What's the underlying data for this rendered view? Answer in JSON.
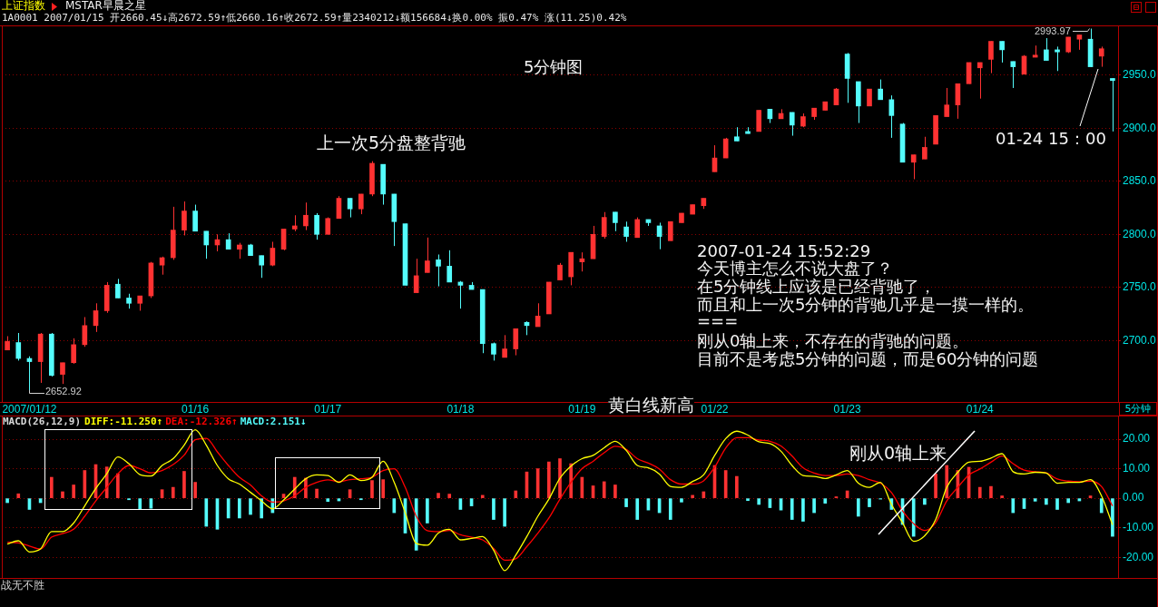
{
  "chart_data": [
    {
      "type": "candlestick",
      "title": "上证指数",
      "subtitle": "MSTAR早晨之星",
      "xlabel": "5分钟",
      "categories": [
        null,
        null,
        "2007/01/12",
        null,
        null,
        null,
        null,
        null,
        null,
        null,
        null,
        null,
        null,
        null,
        null,
        null,
        null,
        "01/16",
        null,
        null,
        null,
        null,
        null,
        null,
        null,
        null,
        null,
        null,
        null,
        "01/17",
        null,
        null,
        null,
        null,
        null,
        null,
        null,
        null,
        null,
        null,
        null,
        "01/18",
        null,
        null,
        null,
        null,
        null,
        null,
        null,
        null,
        null,
        null,
        "01/19",
        null,
        null,
        null,
        null,
        null,
        null,
        null,
        null,
        null,
        null,
        null,
        "01/22",
        null,
        null,
        null,
        null,
        null,
        null,
        null,
        null,
        null,
        null,
        null,
        "01/23",
        null,
        null,
        null,
        null,
        null,
        null,
        null,
        null,
        null,
        null,
        null,
        "01/24",
        null,
        null,
        null,
        null,
        null,
        null,
        null,
        null,
        null,
        null,
        null,
        null
      ],
      "ohlc": [
        [
          2691,
          2704,
          2691,
          2699
        ],
        [
          2698,
          2707,
          2681,
          2683
        ],
        [
          2683,
          2685,
          2652.92,
          2680
        ],
        [
          2680,
          2707,
          2660,
          2706
        ],
        [
          2706,
          2707,
          2666,
          2667
        ],
        [
          2668,
          2679,
          2659,
          2679
        ],
        [
          2679,
          2702,
          2678,
          2696
        ],
        [
          2696,
          2722,
          2694,
          2714
        ],
        [
          2714,
          2735,
          2708,
          2728
        ],
        [
          2728,
          2755,
          2726,
          2752
        ],
        [
          2753,
          2758,
          2740,
          2740
        ],
        [
          2740,
          2744,
          2730,
          2735
        ],
        [
          2735,
          2742,
          2728,
          2742
        ],
        [
          2742,
          2774,
          2740,
          2773
        ],
        [
          2771,
          2779,
          2762,
          2778
        ],
        [
          2778,
          2826,
          2776,
          2804
        ],
        [
          2804,
          2831,
          2799,
          2822
        ],
        [
          2822,
          2828,
          2803,
          2803
        ],
        [
          2803,
          2803,
          2777,
          2790
        ],
        [
          2790,
          2800,
          2784,
          2795
        ],
        [
          2795,
          2801,
          2786,
          2786
        ],
        [
          2786,
          2792,
          2777,
          2790
        ],
        [
          2790,
          2791,
          2780,
          2780
        ],
        [
          2780,
          2780,
          2759,
          2771
        ],
        [
          2771,
          2793,
          2770,
          2787
        ],
        [
          2786,
          2805,
          2785,
          2805
        ],
        [
          2805,
          2818,
          2803,
          2808
        ],
        [
          2808,
          2830,
          2804,
          2818
        ],
        [
          2818,
          2820,
          2795,
          2800
        ],
        [
          2800,
          2816,
          2800,
          2815
        ],
        [
          2815,
          2836,
          2815,
          2834
        ],
        [
          2834,
          2834,
          2816,
          2824
        ],
        [
          2824,
          2838,
          2819,
          2838
        ],
        [
          2838,
          2869,
          2836,
          2867
        ],
        [
          2866,
          2866,
          2828,
          2838
        ],
        [
          2838,
          2838,
          2789,
          2812
        ],
        [
          2810,
          2810,
          2752,
          2752
        ],
        [
          2745,
          2777,
          2745,
          2761
        ],
        [
          2764,
          2797,
          2764,
          2775
        ],
        [
          2776,
          2781,
          2751,
          2770
        ],
        [
          2770,
          2785,
          2755,
          2755
        ],
        [
          2755,
          2756,
          2730,
          2752
        ],
        [
          2752,
          2755,
          2748,
          2748
        ],
        [
          2748,
          2748,
          2688,
          2697
        ],
        [
          2697,
          2698,
          2681,
          2687
        ],
        [
          2684,
          2705,
          2684,
          2692
        ],
        [
          2692,
          2711,
          2686,
          2711
        ],
        [
          2717,
          2718,
          2705,
          2714
        ],
        [
          2713,
          2735,
          2713,
          2723
        ],
        [
          2725,
          2755,
          2725,
          2755
        ],
        [
          2757,
          2773,
          2757,
          2771
        ],
        [
          2760,
          2783,
          2752,
          2783
        ],
        [
          2774,
          2783,
          2765,
          2777
        ],
        [
          2777,
          2808,
          2777,
          2800
        ],
        [
          2798,
          2821,
          2796,
          2816
        ],
        [
          2821,
          2821,
          2803,
          2811
        ],
        [
          2807,
          2812,
          2793,
          2798
        ],
        [
          2797,
          2816,
          2797,
          2814
        ],
        [
          2814,
          2814,
          2808,
          2811
        ],
        [
          2808,
          2811,
          2786,
          2798
        ],
        [
          2794,
          2812,
          2794,
          2812
        ],
        [
          2811,
          2820,
          2811,
          2820
        ],
        [
          2819,
          2828,
          2819,
          2828
        ],
        [
          2827,
          2834,
          2824,
          2834
        ],
        [
          2859,
          2884,
          2859,
          2872
        ],
        [
          2872,
          2891,
          2872,
          2890
        ],
        [
          2892,
          2901,
          2888,
          2888
        ],
        [
          2897,
          2901,
          2895,
          2895
        ],
        [
          2897,
          2917,
          2897,
          2917
        ],
        [
          2918,
          2918,
          2905,
          2909
        ],
        [
          2909,
          2918,
          2909,
          2914
        ],
        [
          2915,
          2915,
          2893,
          2903
        ],
        [
          2902,
          2914,
          2901,
          2911
        ],
        [
          2911,
          2919,
          2908,
          2919
        ],
        [
          2917,
          2925,
          2917,
          2925
        ],
        [
          2922,
          2938,
          2922,
          2937
        ],
        [
          2970,
          2971,
          2924,
          2947
        ],
        [
          2944,
          2944,
          2905,
          2921
        ],
        [
          2921,
          2937,
          2921,
          2937
        ],
        [
          2937,
          2946,
          2927,
          2927
        ],
        [
          2927,
          2931,
          2891,
          2912
        ],
        [
          2904,
          2905,
          2868,
          2868
        ],
        [
          2868,
          2875,
          2852,
          2875
        ],
        [
          2871,
          2892,
          2871,
          2882
        ],
        [
          2885,
          2912,
          2885,
          2912
        ],
        [
          2911,
          2938,
          2911,
          2922
        ],
        [
          2922,
          2942,
          2909,
          2942
        ],
        [
          2942,
          2962,
          2942,
          2962
        ],
        [
          2957,
          2962,
          2928,
          2962
        ],
        [
          2965,
          2982,
          2952,
          2982
        ],
        [
          2982,
          2982,
          2962,
          2974
        ],
        [
          2963,
          2963,
          2938,
          2958
        ],
        [
          2951,
          2969,
          2951,
          2968
        ],
        [
          2967,
          2978,
          2967,
          2969
        ],
        [
          2974,
          2985,
          2964,
          2964
        ],
        [
          2974,
          2977,
          2954,
          2972
        ],
        [
          2972,
          2986,
          2971,
          2986
        ],
        [
          2984,
          2988,
          2974,
          2988
        ],
        [
          2984,
          2993.97,
          2958,
          2958
        ],
        [
          2968,
          2977,
          2958,
          2975
        ],
        [
          2947,
          2947,
          2897,
          2945
        ]
      ],
      "colors": [
        "#ff3232",
        "#54fcfc",
        "#54fcfc",
        "#ff3232",
        "#54fcfc",
        "#ff3232",
        "#ff3232",
        "#ff3232",
        "#ff3232",
        "#ff3232",
        "#54fcfc",
        "#54fcfc",
        "#ff3232",
        "#ff3232",
        "#ff3232",
        "#ff3232",
        "#ff3232",
        "#54fcfc",
        "#54fcfc",
        "#ff3232",
        "#54fcfc",
        "#ff3232",
        "#54fcfc",
        "#54fcfc",
        "#ff3232",
        "#ff3232",
        "#ff3232",
        "#ff3232",
        "#54fcfc",
        "#ff3232",
        "#ff3232",
        "#54fcfc",
        "#ff3232",
        "#ff3232",
        "#54fcfc",
        "#54fcfc",
        "#54fcfc",
        "#ff3232",
        "#ff3232",
        "#54fcfc",
        "#54fcfc",
        "#54fcfc",
        "#54fcfc",
        "#54fcfc",
        "#54fcfc",
        "#ff3232",
        "#ff3232",
        "#54fcfc",
        "#ff3232",
        "#ff3232",
        "#ff3232",
        "#ff3232",
        "#ff3232",
        "#ff3232",
        "#ff3232",
        "#54fcfc",
        "#54fcfc",
        "#ff3232",
        "#54fcfc",
        "#54fcfc",
        "#ff3232",
        "#ff3232",
        "#ff3232",
        "#ff3232",
        "#ff3232",
        "#ff3232",
        "#54fcfc",
        "#54fcfc",
        "#ff3232",
        "#54fcfc",
        "#ff3232",
        "#54fcfc",
        "#ff3232",
        "#ff3232",
        "#ff3232",
        "#ff3232",
        "#54fcfc",
        "#54fcfc",
        "#ff3232",
        "#54fcfc",
        "#54fcfc",
        "#54fcfc",
        "#ff3232",
        "#ff3232",
        "#ff3232",
        "#ff3232",
        "#ff3232",
        "#ff3232",
        "#ff3232",
        "#ff3232",
        "#54fcfc",
        "#54fcfc",
        "#ff3232",
        "#ff3232",
        "#54fcfc",
        "#54fcfc",
        "#ff3232",
        "#ff3232",
        "#54fcfc",
        "#ff3232",
        "#54fcfc"
      ],
      "ylim": [
        2642,
        2997
      ],
      "yticks": [
        {
          "value": 2700,
          "label": "2700.0"
        },
        {
          "value": 2750,
          "label": "2750.0"
        },
        {
          "value": 2800,
          "label": "2800.0"
        },
        {
          "value": 2850,
          "label": "2850.0"
        },
        {
          "value": 2900,
          "label": "2900.0"
        },
        {
          "value": 2950,
          "label": "2950.0"
        }
      ],
      "grid": "y",
      "annotations": [
        "1A0001 2007/01/15 开2660.45↓高2672.59↑低2660.16↑收2672.59↑量2340212↓额156684↓换0.00% 振0.47% 涨(11.25)0.42%",
        "5分钟图",
        "上一次5分盘整背驰",
        "01-24 15：00",
        "2993.97",
        "2652.92",
        "2007-01-24 15:52:29",
        "今天博主怎么不说大盘了？",
        "在5分钟线上应该是已经背驰了，",
        "而且和上一次5分钟的背驰几乎是一摸一样的。",
        "===",
        "刚从0轴上来，不存在的背驰的问题。",
        "目前不是考虑5分钟的问题，而是60分钟的问题"
      ]
    },
    {
      "type": "bar",
      "categories": [
        null,
        null,
        null,
        null,
        null,
        null,
        null,
        null,
        null,
        null,
        null,
        null,
        null,
        null,
        null,
        null,
        null,
        null,
        null,
        null,
        null,
        null,
        null,
        null,
        null,
        null,
        null,
        null,
        null,
        null,
        null,
        null,
        null,
        null,
        null,
        null,
        null,
        null,
        null,
        null,
        null,
        null,
        null,
        null,
        null,
        null,
        null,
        null,
        null,
        null,
        null,
        null,
        null,
        null,
        null,
        null,
        null,
        null,
        null,
        null,
        null,
        null,
        null,
        null,
        null,
        null,
        null,
        null,
        null,
        null,
        null,
        null,
        null,
        null,
        null,
        null,
        null,
        null,
        null,
        null,
        null,
        null,
        null,
        null,
        null,
        null,
        null,
        null,
        null,
        null,
        null,
        null,
        null,
        null,
        null,
        null,
        null,
        null,
        null,
        null,
        null
      ],
      "series": [
        {
          "name": "DIFF:-11.250↑",
          "type": "line",
          "color": "#ffff00",
          "values": [
            -15.5,
            -14.4,
            -18.2,
            -17.2,
            -11.3,
            -11.3,
            -8.4,
            -2.6,
            3.3,
            8.3,
            14.0,
            11.7,
            8.0,
            7.5,
            11.1,
            13.4,
            18.0,
            23.2,
            18.0,
            11.1,
            6.6,
            4.8,
            2.0,
            -0.9,
            -3.6,
            -0.6,
            3.1,
            6.6,
            7.9,
            7.7,
            5.4,
            7.9,
            6.0,
            7.1,
            12.5,
            5.4,
            -4.9,
            -15.3,
            -15.9,
            -11.8,
            -10.5,
            -14.1,
            -13.6,
            -13.0,
            -17.6,
            -24.5,
            -19.3,
            -13.0,
            -6.1,
            -0.3,
            6.8,
            10.9,
            13.4,
            14.5,
            17.1,
            19.3,
            16.2,
            11.1,
            10.3,
            8.2,
            4.0,
            3.7,
            5.7,
            7.9,
            14.5,
            20.2,
            22.7,
            21.4,
            19.1,
            18.5,
            15.9,
            11.1,
            7.7,
            7.4,
            6.7,
            7.9,
            9.4,
            5.1,
            3.7,
            5.4,
            -2.1,
            -8.3,
            -14.6,
            -12.7,
            -7.2,
            3.7,
            8.8,
            12.2,
            12.5,
            13.6,
            15.1,
            9.0,
            8.2,
            8.8,
            8.5,
            5.1,
            5.4,
            5.4,
            6.3,
            0.8,
            -9.0
          ]
        },
        {
          "name": "DEA:-12.326↑",
          "type": "line",
          "color": "#ff0000",
          "values": [
            -14.9,
            -15.1,
            -16.2,
            -17.2,
            -13.2,
            -12.0,
            -10.5,
            -6.1,
            -0.9,
            3.7,
            8.3,
            11.1,
            10.0,
            8.6,
            9.4,
            11.4,
            14.6,
            19.8,
            20.3,
            15.7,
            11.1,
            7.1,
            4.5,
            0.8,
            -1.3,
            -0.9,
            0.8,
            3.7,
            5.4,
            6.2,
            5.6,
            6.3,
            6.6,
            7.1,
            9.4,
            10.0,
            3.7,
            -6.1,
            -11.0,
            -11.3,
            -10.9,
            -12.4,
            -13.2,
            -14.1,
            -17.0,
            -21.0,
            -20.5,
            -16.4,
            -11.8,
            -6.7,
            -0.3,
            5.4,
            10.0,
            12.5,
            15.4,
            17.6,
            16.5,
            13.4,
            11.9,
            9.9,
            6.3,
            4.8,
            4.8,
            5.9,
            10.5,
            17.0,
            20.5,
            20.5,
            19.7,
            19.3,
            17.7,
            14.3,
            10.3,
            8.5,
            7.7,
            7.7,
            8.2,
            7.7,
            6.3,
            5.1,
            1.9,
            -4.3,
            -8.6,
            -10.9,
            -8.3,
            -0.9,
            3.7,
            7.9,
            9.9,
            12.2,
            14.3,
            11.7,
            9.5,
            9.0,
            8.6,
            6.5,
            5.8,
            5.6,
            5.8,
            4.0,
            -2.6
          ]
        },
        {
          "name": "MACD:2.151↓",
          "type": "bar",
          "color": "#54fcfc",
          "colors": [
            "#54fcfc",
            "#ff3232",
            "#54fcfc",
            "#54fcfc",
            "#ff3232",
            "#ff3232",
            "#ff3232",
            "#ff3232",
            "#ff3232",
            "#ff3232",
            "#ff3232",
            "#54fcfc",
            "#54fcfc",
            "#54fcfc",
            "#ff3232",
            "#ff3232",
            "#ff3232",
            "#ff3232",
            "#54fcfc",
            "#54fcfc",
            "#54fcfc",
            "#54fcfc",
            "#54fcfc",
            "#54fcfc",
            "#54fcfc",
            "#ff3232",
            "#ff3232",
            "#ff3232",
            "#ff3232",
            "#54fcfc",
            "#54fcfc",
            "#ff3232",
            "#54fcfc",
            "#ff3232",
            "#ff3232",
            "#54fcfc",
            "#54fcfc",
            "#54fcfc",
            "#54fcfc",
            "#ff3232",
            "#ff3232",
            "#54fcfc",
            "#54fcfc",
            "#ff3232",
            "#54fcfc",
            "#54fcfc",
            "#ff3232",
            "#ff3232",
            "#ff3232",
            "#ff3232",
            "#ff3232",
            "#ff3232",
            "#ff3232",
            "#ff3232",
            "#ff3232",
            "#ff3232",
            "#54fcfc",
            "#54fcfc",
            "#54fcfc",
            "#54fcfc",
            "#54fcfc",
            "#54fcfc",
            "#ff3232",
            "#ff3232",
            "#ff3232",
            "#ff3232",
            "#ff3232",
            "#54fcfc",
            "#54fcfc",
            "#54fcfc",
            "#54fcfc",
            "#54fcfc",
            "#54fcfc",
            "#54fcfc",
            "#54fcfc",
            "#ff3232",
            "#ff3232",
            "#54fcfc",
            "#54fcfc",
            "#54fcfc",
            "#54fcfc",
            "#54fcfc",
            "#54fcfc",
            "#54fcfc",
            "#ff3232",
            "#ff3232",
            "#ff3232",
            "#ff3232",
            "#ff3232",
            "#ff3232",
            "#ff3232",
            "#54fcfc",
            "#54fcfc",
            "#54fcfc",
            "#54fcfc",
            "#54fcfc",
            "#54fcfc",
            "#54fcfc",
            "#ff3232",
            "#54fcfc",
            "#54fcfc"
          ],
          "values": [
            -1.5,
            1.5,
            -3.8,
            -1.5,
            7.1,
            2.2,
            4.5,
            9.4,
            11.4,
            10.6,
            8.3,
            -0.5,
            -3.8,
            -3.4,
            2.9,
            3.7,
            9.1,
            5.4,
            -9.5,
            -10.5,
            -6.7,
            -6.7,
            -5.5,
            -6.7,
            -4.9,
            1.4,
            7.1,
            6.8,
            3.1,
            -1.1,
            -0.9,
            2.9,
            -0.5,
            6.0,
            6.3,
            -4.9,
            -11.8,
            -17.6,
            -8.4,
            1.7,
            1.4,
            -3.8,
            -2.6,
            1.0,
            -7.2,
            -9.5,
            2.5,
            8.9,
            10.0,
            12.3,
            13.4,
            11.7,
            7.1,
            4.2,
            5.6,
            4.5,
            -2.9,
            -7.2,
            -4.0,
            -4.9,
            -7.2,
            -1.3,
            1.0,
            2.2,
            11.1,
            9.4,
            7.4,
            -0.8,
            -2.1,
            -3.2,
            -4.0,
            -7.2,
            -7.8,
            -4.9,
            -1.7,
            0.5,
            2.5,
            -6.1,
            -2.9,
            -0.3,
            -3.8,
            -8.9,
            -12.9,
            -2.1,
            8.2,
            11.1,
            9.4,
            10.5,
            3.7,
            4.0,
            0.8,
            -4.9,
            -3.5,
            -1.0,
            -2.1,
            -3.8,
            -1.5,
            -0.9,
            0.8,
            -4.9,
            -12.9
          ]
        }
      ],
      "legend_title": "MACD(26,12,9)",
      "legend": "top left",
      "ylim": [
        -27,
        28
      ],
      "yticks": [
        {
          "value": 20,
          "label": "20.00"
        },
        {
          "value": 10,
          "label": "10.00"
        },
        {
          "value": 0,
          "label": "0.00"
        },
        {
          "value": -10,
          "label": "-10.00"
        },
        {
          "value": -20,
          "label": "-20.00"
        }
      ],
      "grid": "y",
      "tick_labels": "y",
      "annotations": [
        "黄白线新高",
        "刚从0轴上来",
        "战无不胜"
      ]
    }
  ]
}
